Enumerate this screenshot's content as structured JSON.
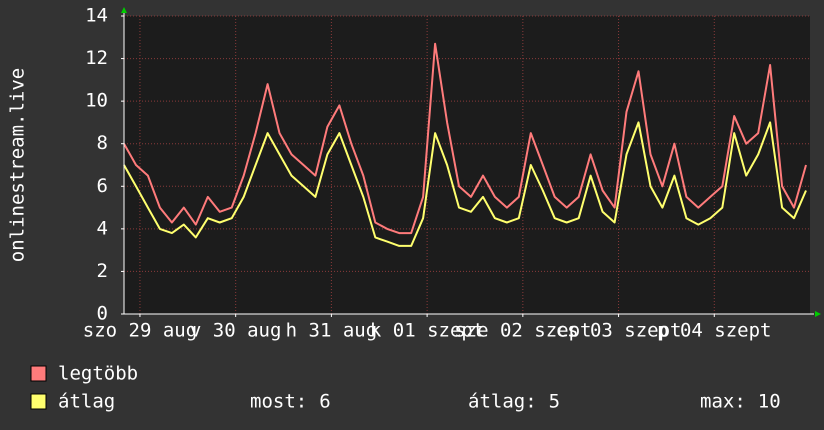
{
  "chart_data": {
    "type": "line",
    "y_label": "onlinestream.live",
    "xlim": [
      0,
      172
    ],
    "ylim": [
      0,
      14
    ],
    "yticks": [
      0,
      2,
      4,
      6,
      8,
      10,
      12,
      14
    ],
    "grid": true,
    "xticks": [
      {
        "value": 4,
        "label": "szo 29 aug"
      },
      {
        "value": 28,
        "label": "v 30 aug"
      },
      {
        "value": 52,
        "label": "h 31 aug"
      },
      {
        "value": 76,
        "label": "k 01 szept"
      },
      {
        "value": 100,
        "label": "sze 02 szept"
      },
      {
        "value": 124,
        "label": "cs 03 szept"
      },
      {
        "value": 148,
        "label": "p 04 szept"
      }
    ],
    "x": [
      0,
      3,
      6,
      9,
      12,
      15,
      18,
      21,
      24,
      27,
      30,
      33,
      36,
      39,
      42,
      45,
      48,
      51,
      54,
      57,
      60,
      63,
      66,
      69,
      72,
      75,
      78,
      81,
      84,
      87,
      90,
      93,
      96,
      99,
      102,
      105,
      108,
      111,
      114,
      117,
      120,
      123,
      126,
      129,
      132,
      135,
      138,
      141,
      144,
      147,
      150,
      153,
      156,
      159,
      162,
      165,
      168,
      171
    ],
    "series": [
      {
        "name": "legtöbb",
        "color": "#ff7b7b",
        "values": [
          8,
          7,
          6.5,
          5,
          4.3,
          5,
          4.2,
          5.5,
          4.8,
          5,
          6.5,
          8.5,
          10.8,
          8.5,
          7.5,
          7,
          6.5,
          8.8,
          9.8,
          8,
          6.5,
          4.3,
          4,
          3.8,
          3.8,
          5.5,
          12.7,
          9,
          6,
          5.5,
          6.5,
          5.5,
          5,
          5.5,
          8.5,
          7,
          5.5,
          5,
          5.5,
          7.5,
          5.8,
          5,
          9.5,
          11.4,
          7.5,
          6,
          8,
          5.5,
          5,
          5.5,
          6,
          9.3,
          8,
          8.5,
          11.7,
          6,
          5,
          7
        ]
      },
      {
        "name": "átlag",
        "color": "#ffff6e",
        "values": [
          7,
          6,
          5,
          4,
          3.8,
          4.2,
          3.6,
          4.5,
          4.3,
          4.5,
          5.5,
          7,
          8.5,
          7.5,
          6.5,
          6,
          5.5,
          7.5,
          8.5,
          7,
          5.5,
          3.6,
          3.4,
          3.2,
          3.2,
          4.5,
          8.5,
          7,
          5,
          4.8,
          5.5,
          4.5,
          4.3,
          4.5,
          7,
          5.8,
          4.5,
          4.3,
          4.5,
          6.5,
          4.8,
          4.3,
          7.5,
          9,
          6,
          5,
          6.5,
          4.5,
          4.2,
          4.5,
          5,
          8.5,
          6.5,
          7.5,
          9,
          5,
          4.5,
          5.8
        ]
      }
    ],
    "stats": [
      {
        "label": "most:",
        "value": 6
      },
      {
        "label": "átlag:",
        "value": 5
      },
      {
        "label": "max:",
        "value": 10
      }
    ]
  }
}
